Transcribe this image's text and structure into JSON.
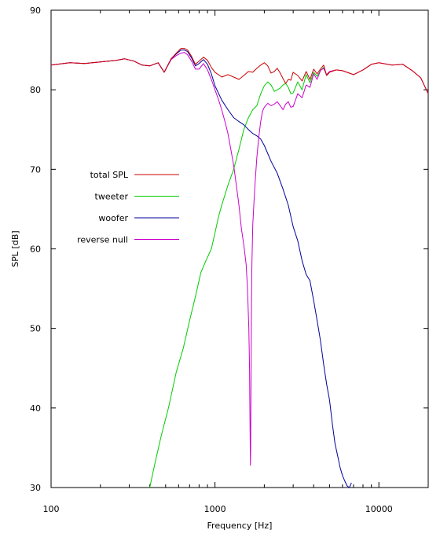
{
  "chart_data": {
    "type": "line",
    "title": "",
    "xlabel": "Frequency [Hz]",
    "ylabel": "SPL [dB]",
    "x_scale": "log",
    "xlim": [
      100,
      20000
    ],
    "ylim": [
      30,
      90
    ],
    "x_ticks": [
      100,
      1000,
      10000
    ],
    "x_tick_labels": [
      "100",
      "1000",
      "10000"
    ],
    "y_ticks": [
      30,
      40,
      50,
      60,
      70,
      80,
      90
    ],
    "y_tick_labels": [
      "30",
      "40",
      "50",
      "60",
      "70",
      "80",
      "90"
    ],
    "grid": false,
    "legend_position": "middle-left",
    "series": [
      {
        "name": "total SPL",
        "color": "#cc0000",
        "x": [
          100,
          130,
          160,
          200,
          250,
          280,
          320,
          360,
          400,
          450,
          490,
          540,
          580,
          620,
          650,
          680,
          720,
          760,
          800,
          850,
          900,
          950,
          1000,
          1050,
          1100,
          1200,
          1300,
          1400,
          1500,
          1600,
          1700,
          1800,
          1900,
          2000,
          2100,
          2200,
          2300,
          2400,
          2500,
          2600,
          2700,
          2800,
          2900,
          3000,
          3200,
          3400,
          3600,
          3800,
          4000,
          4200,
          4400,
          4600,
          4800,
          5000,
          5500,
          6000,
          7000,
          8000,
          9000,
          10000,
          12000,
          14000,
          16000,
          18000,
          20000
        ],
        "y": [
          83.1,
          83.4,
          83.3,
          83.5,
          83.7,
          83.9,
          83.6,
          83.1,
          83.0,
          83.4,
          82.2,
          83.9,
          84.6,
          85.2,
          85.2,
          85.0,
          84.2,
          83.2,
          83.6,
          84.1,
          83.7,
          82.8,
          82.2,
          81.9,
          81.6,
          81.9,
          81.6,
          81.3,
          81.8,
          82.3,
          82.2,
          82.7,
          83.1,
          83.4,
          83.0,
          82.1,
          82.3,
          82.7,
          82.1,
          81.4,
          80.8,
          81.3,
          81.2,
          82.2,
          81.8,
          81.1,
          82.3,
          81.3,
          82.6,
          82.0,
          82.6,
          83.1,
          81.8,
          82.2,
          82.5,
          82.4,
          81.9,
          82.5,
          83.2,
          83.4,
          83.1,
          83.2,
          82.4,
          81.5,
          79.5
        ]
      },
      {
        "name": "tweeter",
        "color": "#00cc00",
        "x": [
          400,
          430,
          470,
          520,
          580,
          640,
          700,
          760,
          820,
          880,
          950,
          1000,
          1050,
          1100,
          1200,
          1300,
          1400,
          1500,
          1600,
          1700,
          1800,
          1900,
          2000,
          2100,
          2200,
          2300,
          2400,
          2500,
          2600,
          2700,
          2800,
          2900,
          3000,
          3200,
          3400,
          3600,
          3800,
          4000,
          4200,
          4400,
          4600,
          4800,
          5000
        ],
        "y": [
          30.0,
          33.0,
          36.5,
          40.0,
          44.5,
          47.5,
          51.0,
          54.0,
          57.0,
          58.5,
          60.0,
          62.0,
          64.0,
          65.5,
          68.0,
          70.0,
          72.5,
          75.0,
          76.5,
          77.5,
          78.0,
          79.5,
          80.5,
          81.0,
          80.6,
          79.8,
          80.0,
          80.2,
          80.6,
          80.8,
          80.3,
          79.5,
          79.6,
          81.0,
          80.0,
          81.9,
          80.9,
          82.2,
          81.7,
          82.4,
          82.8,
          81.8,
          82.2
        ]
      },
      {
        "name": "woofer",
        "color": "#000099",
        "x": [
          100,
          130,
          160,
          200,
          250,
          280,
          320,
          360,
          400,
          450,
          490,
          540,
          580,
          620,
          650,
          680,
          720,
          760,
          800,
          850,
          900,
          950,
          1000,
          1100,
          1200,
          1300,
          1400,
          1500,
          1600,
          1700,
          1800,
          1900,
          2000,
          2200,
          2400,
          2600,
          2800,
          3000,
          3200,
          3400,
          3600,
          3800,
          4000,
          4200,
          4400,
          4600,
          4800,
          5000,
          5200,
          5400,
          5600,
          5800,
          6000,
          6200,
          6400,
          6600,
          6800
        ],
        "y": [
          83.1,
          83.4,
          83.3,
          83.5,
          83.7,
          83.9,
          83.6,
          83.1,
          83.0,
          83.4,
          82.2,
          83.9,
          84.5,
          85.0,
          85.0,
          84.8,
          84.0,
          83.0,
          83.3,
          83.8,
          83.2,
          82.0,
          80.5,
          78.7,
          77.5,
          76.5,
          76.0,
          75.6,
          75.0,
          74.5,
          74.2,
          73.8,
          73.0,
          71.0,
          69.5,
          67.5,
          65.5,
          62.8,
          61.0,
          58.5,
          56.8,
          56.0,
          53.5,
          51.0,
          48.5,
          45.5,
          43.0,
          41.0,
          38.0,
          35.5,
          34.0,
          32.5,
          31.5,
          30.8,
          30.2,
          30.0,
          30.6
        ]
      },
      {
        "name": "reverse null",
        "color": "#cc00cc",
        "x": [
          100,
          130,
          160,
          200,
          250,
          280,
          320,
          360,
          400,
          450,
          490,
          540,
          580,
          620,
          650,
          680,
          720,
          760,
          800,
          850,
          900,
          950,
          1000,
          1050,
          1100,
          1150,
          1200,
          1250,
          1300,
          1350,
          1400,
          1450,
          1500,
          1550,
          1580,
          1610,
          1625,
          1635,
          1645,
          1650,
          1660,
          1670,
          1680,
          1700,
          1730,
          1760,
          1800,
          1850,
          1900,
          1950,
          2000,
          2100,
          2200,
          2300,
          2400,
          2500,
          2600,
          2700,
          2800,
          2900,
          3000,
          3200,
          3400,
          3600,
          3800,
          4000,
          4200,
          4400,
          4600,
          4800,
          5000,
          5500,
          6000,
          7000,
          8000,
          9000,
          10000,
          12000,
          14000,
          16000,
          18000,
          20000
        ],
        "y": [
          83.1,
          83.4,
          83.3,
          83.5,
          83.7,
          83.9,
          83.6,
          83.1,
          83.0,
          83.4,
          82.2,
          83.8,
          84.3,
          84.6,
          84.7,
          84.4,
          83.6,
          82.6,
          82.6,
          83.3,
          82.5,
          81.3,
          80.0,
          78.8,
          77.5,
          76.0,
          74.5,
          72.5,
          70.5,
          68.0,
          65.5,
          62.5,
          60.5,
          58.0,
          55.0,
          50.0,
          45.0,
          39.0,
          32.8,
          35.0,
          44.0,
          53.0,
          58.0,
          63.0,
          66.0,
          68.5,
          71.5,
          74.0,
          76.0,
          77.3,
          77.8,
          78.3,
          78.0,
          78.2,
          78.5,
          78.0,
          77.5,
          78.2,
          78.5,
          77.8,
          77.9,
          79.5,
          79.0,
          80.6,
          80.3,
          82.0,
          81.3,
          82.4,
          82.7,
          81.9,
          82.3,
          82.5,
          82.4,
          81.9,
          82.5,
          83.2,
          83.4,
          83.1,
          83.2,
          82.4,
          81.5,
          79.5
        ]
      }
    ]
  }
}
